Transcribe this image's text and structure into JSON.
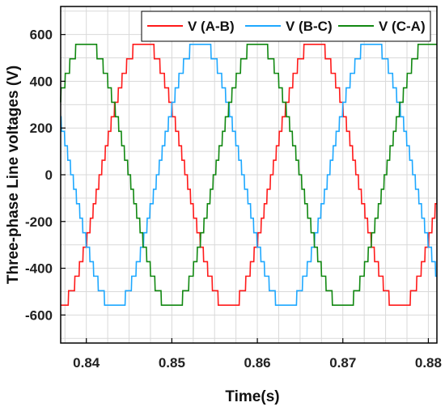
{
  "chart_data": {
    "type": "line",
    "title": "",
    "xlabel": "Time(s)",
    "ylabel": "Three-phase Line voltages (V)",
    "xlim": [
      0.837,
      0.881
    ],
    "ylim": [
      -720,
      720
    ],
    "xticks": [
      0.84,
      0.85,
      0.86,
      0.87,
      0.88
    ],
    "xtick_labels": [
      "0.84",
      "0.85",
      "0.86",
      "0.87",
      "0.88"
    ],
    "yticks": [
      -600,
      -400,
      -200,
      0,
      200,
      400,
      600
    ],
    "ytick_labels": [
      "-600",
      "-400",
      "-200",
      "0",
      "200",
      "400",
      "600"
    ],
    "grid": true,
    "legend_position": "top-right",
    "waveform": {
      "amplitude_V": 570,
      "frequency_Hz": 50,
      "step_V": 62,
      "samples": 900,
      "peak_ripple_V": 22
    },
    "series": [
      {
        "name": "V (A-B)",
        "color": "#ff1a1a",
        "phase_deg": -30
      },
      {
        "name": "V (B-C)",
        "color": "#1ea8ff",
        "phase_deg": -150
      },
      {
        "name": "V (C-A)",
        "color": "#118811",
        "phase_deg": 90
      }
    ]
  }
}
